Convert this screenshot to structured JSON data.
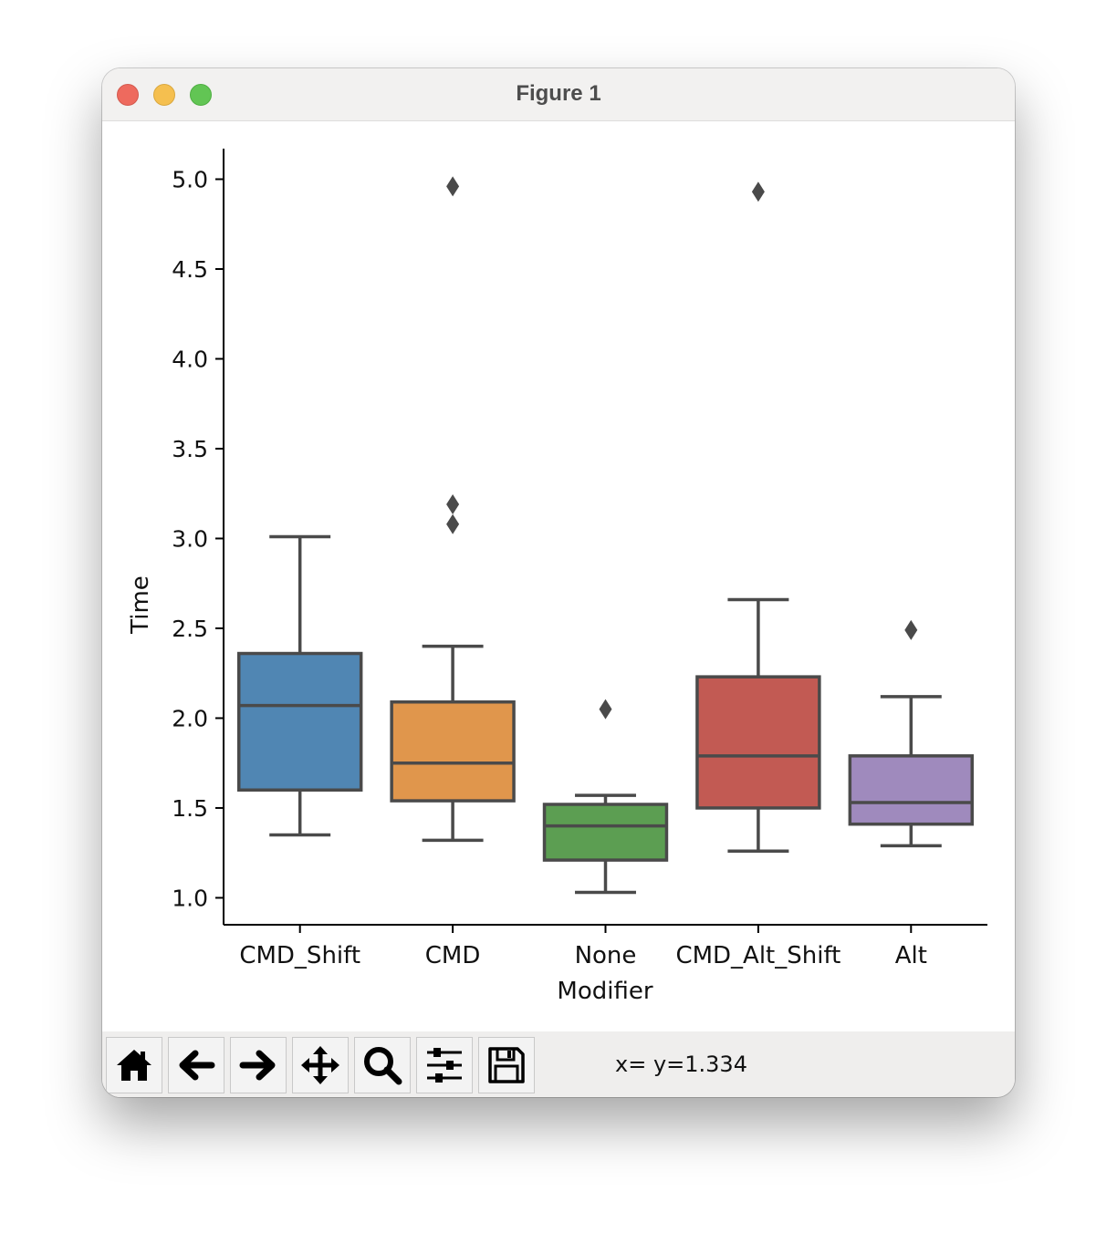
{
  "window": {
    "title": "Figure 1"
  },
  "toolbar": {
    "buttons": [
      {
        "name": "home-icon"
      },
      {
        "name": "back-arrow-icon"
      },
      {
        "name": "forward-arrow-icon"
      },
      {
        "name": "pan-move-icon"
      },
      {
        "name": "zoom-magnifier-icon"
      },
      {
        "name": "configure-subplots-icon"
      },
      {
        "name": "save-floppy-icon"
      }
    ],
    "coordinates": "x= y=1.334"
  },
  "chart_data": {
    "type": "boxplot",
    "xlabel": "Modifier",
    "ylabel": "Time",
    "ylim": [
      0.85,
      5.17
    ],
    "yticks": [
      "1.0",
      "1.5",
      "2.0",
      "2.5",
      "3.0",
      "3.5",
      "4.0",
      "4.5",
      "5.0"
    ],
    "categories": [
      "CMD_Shift",
      "CMD",
      "None",
      "CMD_Alt_Shift",
      "Alt"
    ],
    "colors": [
      "#5086b3",
      "#e0964c",
      "#5c9e52",
      "#c25a53",
      "#9f8abd"
    ],
    "edge_color": "#4a4a4a",
    "boxes": [
      {
        "whisker_low": 1.35,
        "q1": 1.6,
        "median": 2.07,
        "q3": 2.36,
        "whisker_high": 3.01,
        "outliers": []
      },
      {
        "whisker_low": 1.32,
        "q1": 1.54,
        "median": 1.75,
        "q3": 2.09,
        "whisker_high": 2.4,
        "outliers": [
          4.96,
          3.19,
          3.08
        ]
      },
      {
        "whisker_low": 1.03,
        "q1": 1.21,
        "median": 1.4,
        "q3": 1.52,
        "whisker_high": 1.57,
        "outliers": [
          2.05
        ]
      },
      {
        "whisker_low": 1.26,
        "q1": 1.5,
        "median": 1.79,
        "q3": 2.23,
        "whisker_high": 2.66,
        "outliers": [
          4.93
        ]
      },
      {
        "whisker_low": 1.29,
        "q1": 1.41,
        "median": 1.53,
        "q3": 1.79,
        "whisker_high": 2.12,
        "outliers": [
          2.49
        ]
      }
    ]
  }
}
